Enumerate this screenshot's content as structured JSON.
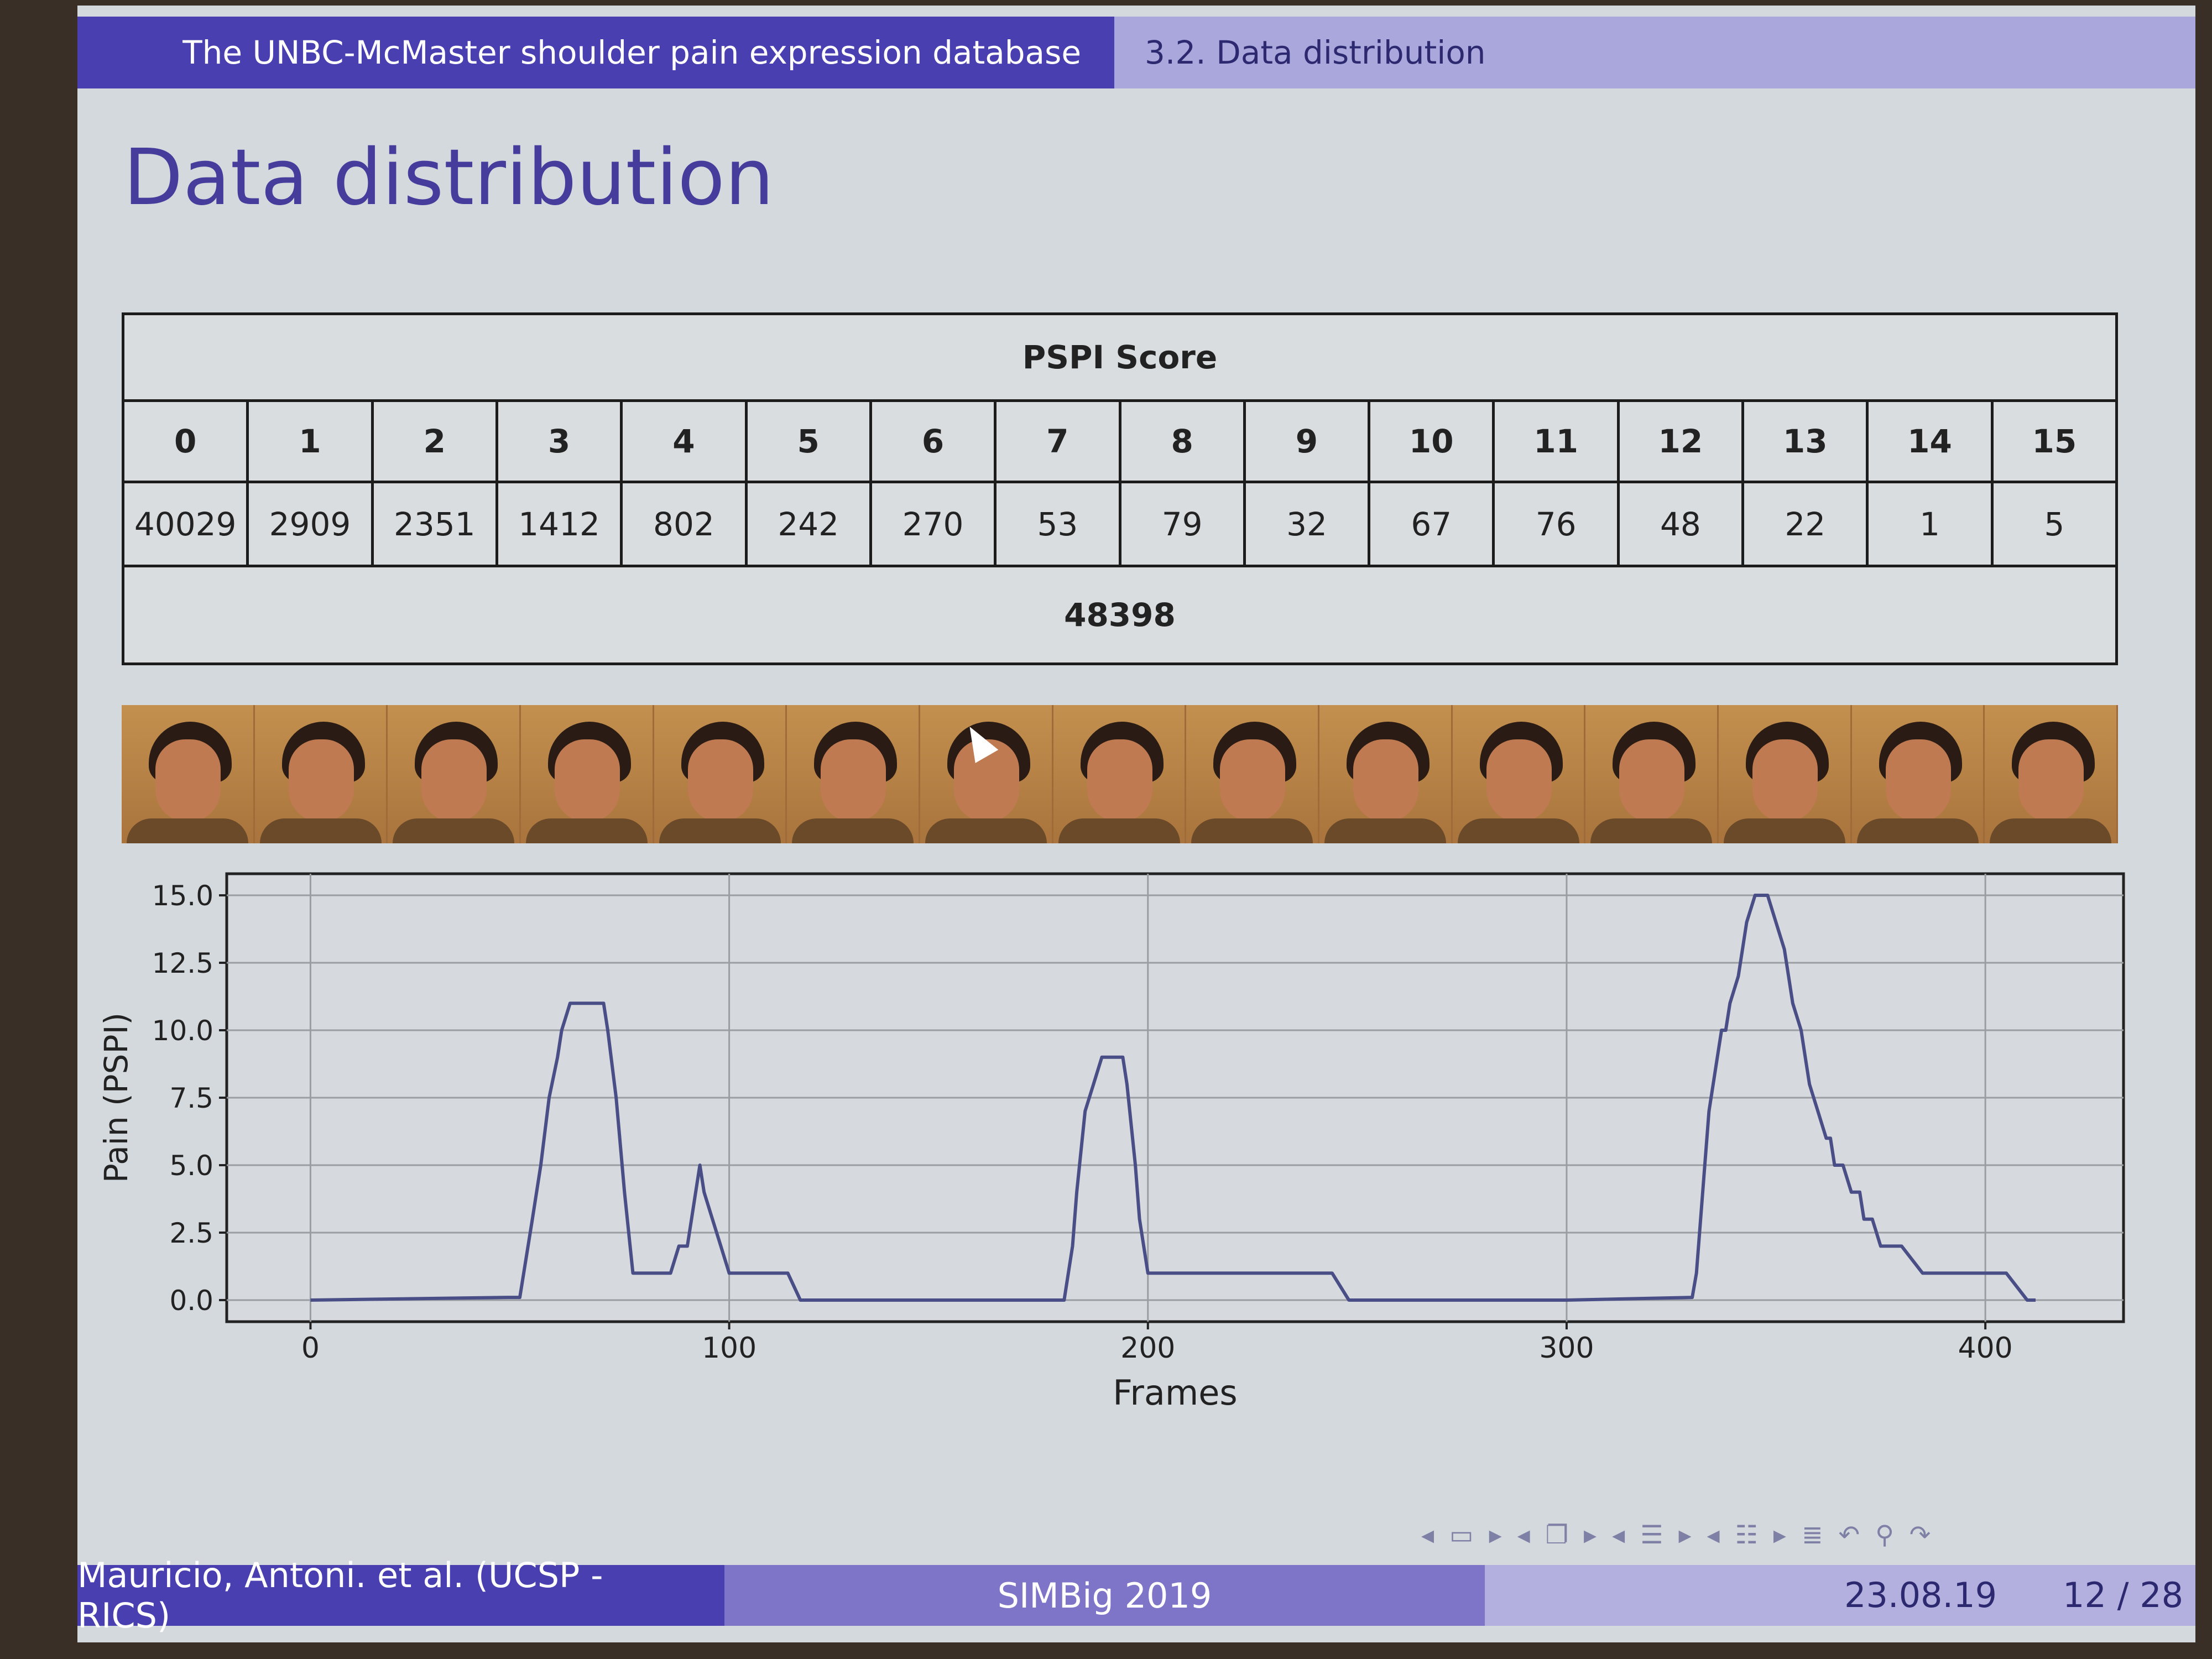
{
  "header": {
    "section": "The UNBC-McMaster shoulder pain expression database",
    "subsection": "3.2. Data distribution"
  },
  "slide_title": "Data distribution",
  "table": {
    "title": "PSPI Score",
    "scores": [
      "0",
      "1",
      "2",
      "3",
      "4",
      "5",
      "6",
      "7",
      "8",
      "9",
      "10",
      "11",
      "12",
      "13",
      "14",
      "15"
    ],
    "counts": [
      "40029",
      "2909",
      "2351",
      "1412",
      "802",
      "242",
      "270",
      "53",
      "79",
      "32",
      "67",
      "76",
      "48",
      "22",
      "1",
      "5"
    ],
    "total": "48398"
  },
  "face_strip": {
    "frame_count": 15
  },
  "chart_data": {
    "type": "line",
    "title": "",
    "xlabel": "Frames",
    "ylabel": "Pain (PSPI)",
    "xlim": [
      -20,
      433
    ],
    "ylim": [
      -0.8,
      15.8
    ],
    "xticks": [
      0,
      100,
      200,
      300,
      400
    ],
    "yticks": [
      0.0,
      2.5,
      5.0,
      7.5,
      10.0,
      12.5,
      15.0
    ],
    "xtick_labels": [
      "0",
      "100",
      "200",
      "300",
      "400"
    ],
    "ytick_labels": [
      "0.0",
      "2.5",
      "5.0",
      "7.5",
      "10.0",
      "12.5",
      "15.0"
    ],
    "grid": true,
    "line_color": "#4a4e86",
    "series": [
      {
        "x": [
          0,
          47,
          50,
          53,
          55,
          57,
          59,
          60,
          62,
          67,
          69,
          70,
          71,
          73,
          75,
          77,
          80,
          84,
          86,
          88,
          90,
          91,
          92,
          93,
          94,
          96,
          98,
          100,
          105,
          108,
          114,
          117,
          150,
          180,
          182,
          183,
          185,
          187,
          189,
          191,
          194,
          195,
          197,
          198,
          199,
          200,
          203,
          207,
          214,
          220,
          240,
          244,
          248,
          300,
          330,
          331,
          333,
          334,
          336,
          337,
          338,
          339,
          341,
          342,
          343,
          345,
          347,
          348,
          350,
          352,
          353,
          354,
          356,
          357,
          358,
          360,
          362,
          363,
          364,
          366,
          368,
          370,
          371,
          373,
          375,
          377,
          380,
          385,
          388,
          390,
          392,
          395,
          398,
          400,
          401,
          405,
          410,
          411,
          412
        ],
        "y": [
          0,
          0.1,
          0.1,
          3,
          5,
          7.5,
          9,
          10,
          11,
          11,
          11,
          11,
          10,
          7.5,
          4,
          1,
          1,
          1,
          1,
          2,
          2,
          3,
          4,
          5,
          4,
          3,
          2,
          1,
          1,
          1,
          1,
          0,
          0,
          0,
          2,
          4,
          7,
          8,
          9,
          9,
          9,
          8,
          5,
          3,
          2,
          1,
          1,
          1,
          1,
          1,
          1,
          1,
          0,
          0,
          0.1,
          1,
          5,
          7,
          9,
          10,
          10,
          11,
          12,
          13,
          14,
          15,
          15,
          15,
          14,
          13,
          12,
          11,
          10,
          9,
          8,
          7,
          6,
          6,
          5,
          5,
          4,
          4,
          3,
          3,
          2,
          2,
          2,
          1,
          1,
          1,
          1,
          1,
          1,
          1,
          1,
          1,
          0,
          0,
          0
        ]
      }
    ]
  },
  "navigation": {
    "icons": [
      "nav-prev-icon",
      "frame-icon",
      "nav-next-icon",
      "nav-prev-icon",
      "section-icon",
      "nav-next-icon",
      "nav-prev-icon",
      "subsection-icon",
      "nav-next-icon",
      "nav-prev-icon",
      "list-icon",
      "nav-next-icon",
      "toc-icon",
      "undo-icon",
      "search-icon",
      "redo-icon"
    ]
  },
  "footer": {
    "author": "Mauricio, Antoni. et al.  (UCSP - RICS)",
    "event": "SIMBig 2019",
    "date": "23.08.19",
    "page": "12 / 28"
  },
  "colors": {
    "beamer_dark": "#4a3fb0",
    "beamer_mid": "#7e74c8",
    "beamer_light": "#a9a7db",
    "slide_bg": "#d4d9dd",
    "title_color": "#463c9c",
    "face_strip_bg": "#b8834a"
  }
}
